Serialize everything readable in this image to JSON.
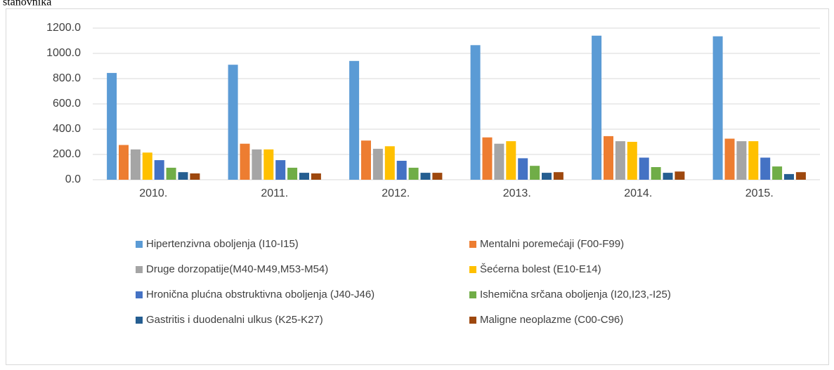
{
  "chart_data": {
    "type": "bar",
    "title": "stanovnika",
    "categories": [
      "2010.",
      "2011.",
      "2012.",
      "2013.",
      "2014.",
      "2015."
    ],
    "series": [
      {
        "name": "Hipertenzivna oboljenja (I10-I15)",
        "color": "#5b9bd5",
        "values": [
          845,
          910,
          940,
          1065,
          1140,
          1135
        ]
      },
      {
        "name": "Mentalni poremećaji (F00-F99)",
        "color": "#ed7d31",
        "values": [
          275,
          285,
          310,
          335,
          345,
          325
        ]
      },
      {
        "name": "Druge dorzopatije(M40-M49,M53-M54)",
        "color": "#a5a5a5",
        "values": [
          240,
          240,
          245,
          285,
          305,
          305
        ]
      },
      {
        "name": "Šećerna bolest (E10-E14)",
        "color": "#ffc000",
        "values": [
          215,
          240,
          265,
          305,
          300,
          305
        ]
      },
      {
        "name": "Hronična plućna obstruktivna oboljenja (J40-J46)",
        "color": "#4472c4",
        "values": [
          155,
          155,
          150,
          170,
          175,
          175
        ]
      },
      {
        "name": "Ishemična srčana oboljenja (I20,I23,-I25)",
        "color": "#70ad47",
        "values": [
          95,
          95,
          95,
          110,
          100,
          105
        ]
      },
      {
        "name": "Gastritis i duodenalni ulkus  (K25-K27)",
        "color": "#255e91",
        "values": [
          60,
          55,
          55,
          55,
          55,
          45
        ]
      },
      {
        "name": "Maligne neoplazme (C00-C96)",
        "color": "#9e480e",
        "values": [
          50,
          50,
          55,
          60,
          65,
          60
        ]
      }
    ],
    "ylim": [
      0,
      1200
    ],
    "yticks": [
      {
        "value": 0,
        "label": "0.0"
      },
      {
        "value": 200,
        "label": "200.0"
      },
      {
        "value": 400,
        "label": "400.0"
      },
      {
        "value": 600,
        "label": "600.0"
      },
      {
        "value": 800,
        "label": "800.0"
      },
      {
        "value": 1000,
        "label": "1000.0"
      },
      {
        "value": 1200,
        "label": "1200.0"
      }
    ],
    "grid": true
  }
}
